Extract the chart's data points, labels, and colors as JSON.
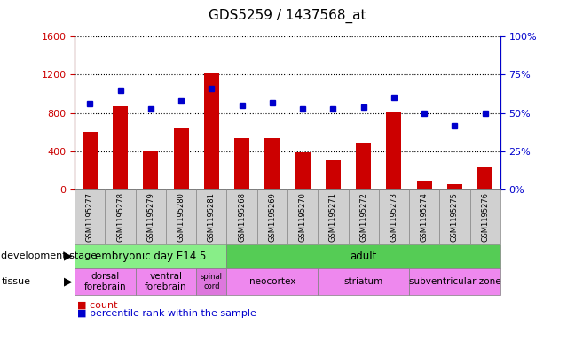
{
  "title": "GDS5259 / 1437568_at",
  "samples": [
    "GSM1195277",
    "GSM1195278",
    "GSM1195279",
    "GSM1195280",
    "GSM1195281",
    "GSM1195268",
    "GSM1195269",
    "GSM1195270",
    "GSM1195271",
    "GSM1195272",
    "GSM1195273",
    "GSM1195274",
    "GSM1195275",
    "GSM1195276"
  ],
  "counts": [
    600,
    870,
    410,
    640,
    1220,
    540,
    540,
    390,
    310,
    480,
    820,
    90,
    60,
    230
  ],
  "percentiles": [
    56,
    65,
    53,
    58,
    66,
    55,
    57,
    53,
    53,
    54,
    60,
    50,
    42,
    50
  ],
  "ylim_left": [
    0,
    1600
  ],
  "ylim_right": [
    0,
    100
  ],
  "yticks_left": [
    0,
    400,
    800,
    1200,
    1600
  ],
  "yticks_right": [
    0,
    25,
    50,
    75,
    100
  ],
  "bar_color": "#cc0000",
  "dot_color": "#0000cc",
  "bar_width": 0.5,
  "dev_stage_groups": [
    {
      "label": "embryonic day E14.5",
      "start": 0,
      "end": 4,
      "color": "#88ee88"
    },
    {
      "label": "adult",
      "start": 5,
      "end": 13,
      "color": "#55cc55"
    }
  ],
  "tissue_groups": [
    {
      "label": "dorsal\nforebrain",
      "start": 0,
      "end": 1,
      "color": "#ee88ee"
    },
    {
      "label": "ventral\nforebrain",
      "start": 2,
      "end": 3,
      "color": "#ee88ee"
    },
    {
      "label": "spinal\ncord",
      "start": 4,
      "end": 4,
      "color": "#dd77dd"
    },
    {
      "label": "neocortex",
      "start": 5,
      "end": 7,
      "color": "#ee88ee"
    },
    {
      "label": "striatum",
      "start": 8,
      "end": 10,
      "color": "#ee88ee"
    },
    {
      "label": "subventricular zone",
      "start": 11,
      "end": 13,
      "color": "#ee88ee"
    }
  ],
  "background_color": "#ffffff",
  "tick_color_left": "#cc0000",
  "tick_color_right": "#0000cc",
  "xtick_bg_color": "#d0d0d0",
  "xtick_border_color": "#888888"
}
